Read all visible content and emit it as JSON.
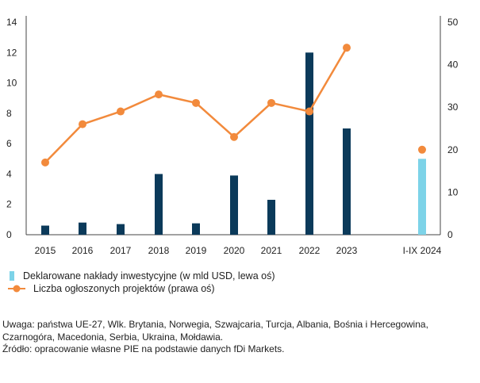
{
  "chart_data": {
    "type": "bar+line",
    "categories": [
      "2015",
      "2016",
      "2017",
      "2018",
      "2019",
      "2020",
      "2021",
      "2022",
      "2023",
      "I-IX 2024"
    ],
    "series": [
      {
        "name": "Deklarowane nakłady inwestycyjne (w mld USD, lewa oś)",
        "type": "bar",
        "axis": "left",
        "values": [
          0.6,
          0.8,
          0.7,
          4.0,
          0.75,
          3.9,
          2.3,
          12.0,
          7.0,
          5.0
        ],
        "colors": [
          "#0b3a5a",
          "#0b3a5a",
          "#0b3a5a",
          "#0b3a5a",
          "#0b3a5a",
          "#0b3a5a",
          "#0b3a5a",
          "#0b3a5a",
          "#0b3a5a",
          "#7dd3e8"
        ]
      },
      {
        "name": "Liczba ogłoszonych projektów (prawa oś)",
        "type": "line",
        "axis": "right",
        "color": "#f28a3c",
        "values": [
          17,
          26,
          29,
          33,
          31,
          23,
          31,
          29,
          44,
          20
        ],
        "connected_through_index": 8
      }
    ],
    "left_axis": {
      "ylim": [
        0,
        14
      ],
      "ticks": [
        "0",
        "2",
        "4",
        "6",
        "8",
        "10",
        "12",
        "14"
      ]
    },
    "right_axis": {
      "ylim": [
        0,
        50
      ],
      "ticks": [
        "0",
        "10",
        "20",
        "30",
        "40",
        "50"
      ]
    },
    "grid": false,
    "legend_position": "bottom-left"
  },
  "legend": {
    "bar_label": "Deklarowane nakłady inwestycyjne (w mld USD, lewa oś)",
    "line_label": "Liczba ogłoszonych projektów (prawa oś)"
  },
  "notes": {
    "note": "Uwaga: państwa UE-27, Wlk. Brytania, Norwegia, Szwajcaria, Turcja, Albania, Bośnia i Hercegowina, Czarnogóra, Macedonia, Serbia, Ukraina, Mołdawia.",
    "source": "Źródło: opracowanie własne PIE na podstawie danych fDi Markets."
  }
}
